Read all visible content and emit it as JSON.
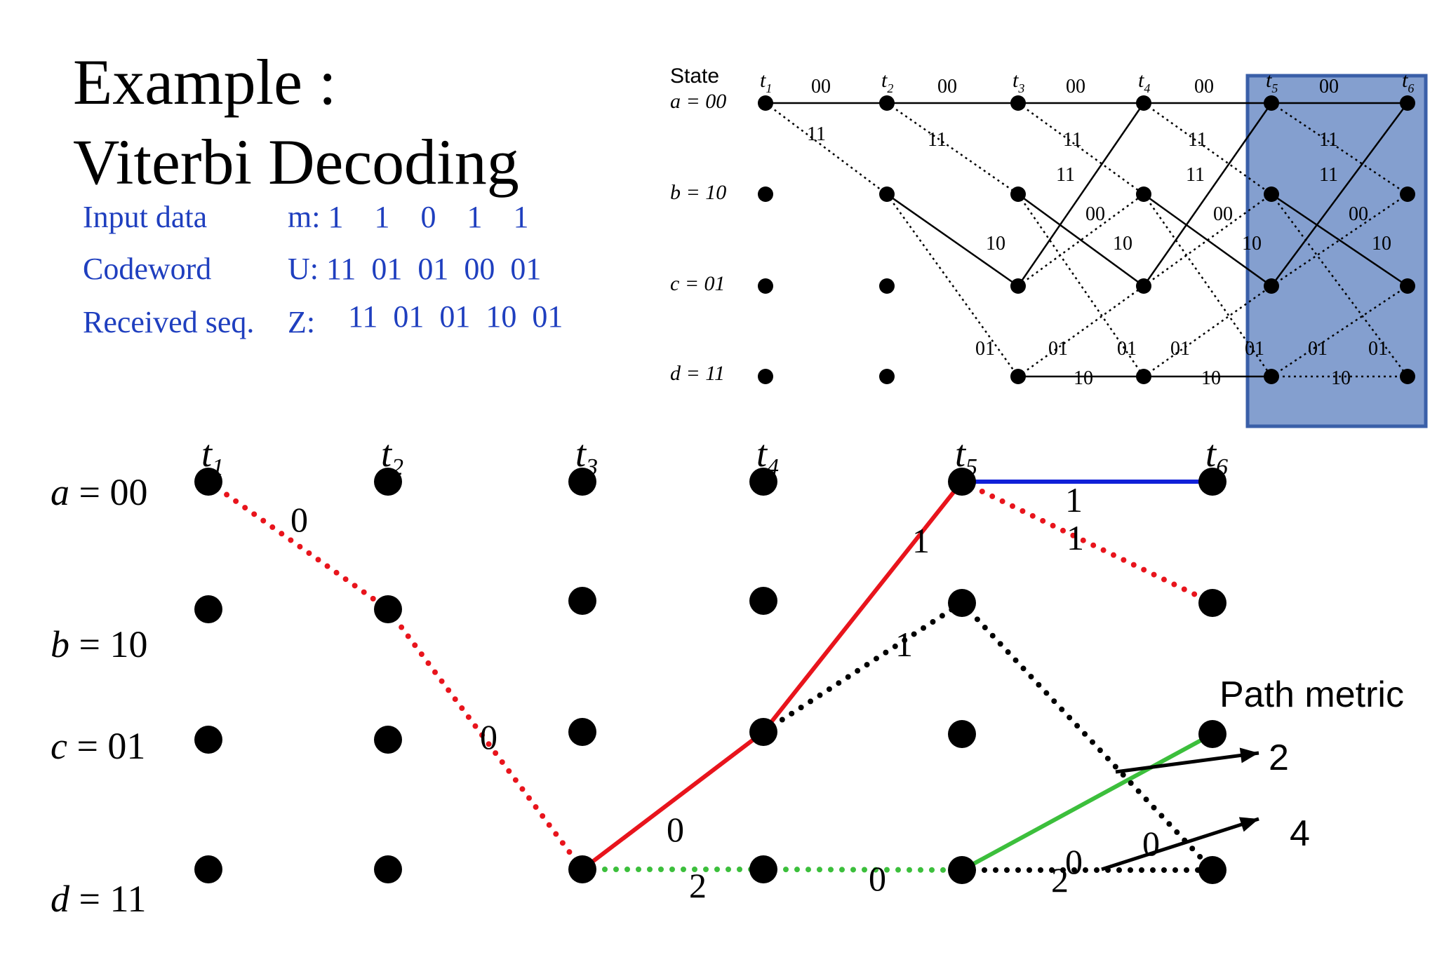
{
  "title": {
    "line1": "Example :",
    "line2": "Viterbi Decoding"
  },
  "info": {
    "input": {
      "label": "Input data",
      "value": "m: 1    1    0    1    1"
    },
    "codeword": {
      "label": "Codeword",
      "value": "U: 11  01  01  00  01"
    },
    "received": {
      "label": "Received seq.",
      "prefix": "Z:",
      "value": "11  01  01  10  01"
    }
  },
  "reference_trellis": {
    "state_header": "State",
    "states": [
      "a = 00",
      "b = 10",
      "c = 01",
      "d = 11"
    ],
    "times": [
      "t",
      "t",
      "t",
      "t",
      "t",
      "t"
    ],
    "time_subs": [
      "1",
      "2",
      "3",
      "4",
      "5",
      "6"
    ],
    "branch_labels": [
      "00",
      "00",
      "00",
      "00",
      "00",
      "11",
      "11",
      "11",
      "11",
      "11",
      "11",
      "11",
      "11",
      "00",
      "00",
      "00",
      "10",
      "10",
      "10",
      "10",
      "01",
      "01",
      "01",
      "01",
      "01",
      "01",
      "01",
      "10",
      "10",
      "10"
    ],
    "highlight_color": "#5b7fbf"
  },
  "main_trellis": {
    "states": [
      {
        "var": "a",
        "value": " = 00"
      },
      {
        "var": "b",
        "value": " = 10"
      },
      {
        "var": "c",
        "value": " = 01"
      },
      {
        "var": "d",
        "value": " = 11"
      }
    ],
    "times": [
      {
        "t": "t",
        "sub": "1"
      },
      {
        "t": "t",
        "sub": "2"
      },
      {
        "t": "t",
        "sub": "3"
      },
      {
        "t": "t",
        "sub": "4"
      },
      {
        "t": "t",
        "sub": "5"
      },
      {
        "t": "t",
        "sub": "6"
      }
    ],
    "branch_metrics": [
      "0",
      "0",
      "0",
      "2",
      "1",
      "1",
      "0",
      "1",
      "1",
      "2",
      "0",
      "0"
    ],
    "path_metric_label": "Path metric",
    "path_metric_values": [
      "2",
      "4"
    ],
    "colors": {
      "red": "#e8141c",
      "green": "#3cbf3c",
      "blue": "#1020d8",
      "black": "#000000"
    }
  }
}
